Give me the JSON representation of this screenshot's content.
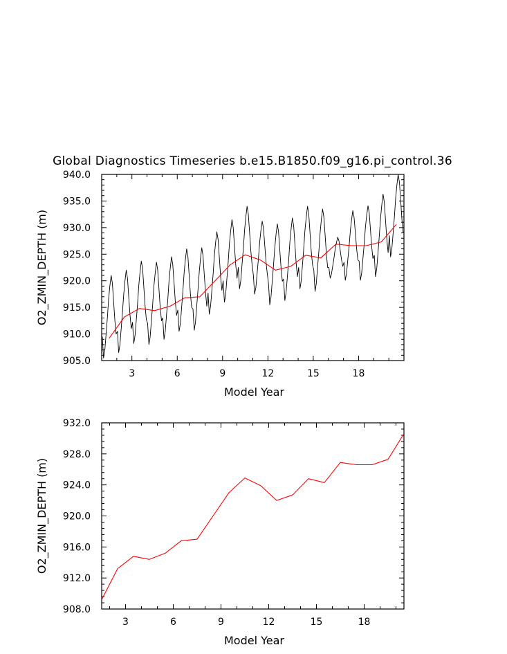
{
  "figure_title": "Global Diagnostics Timeseries b.e15.B1850.f09_g16.pi_control.36",
  "colors": {
    "monthly": "#000000",
    "annual": "#ff0000",
    "axes": "#000000",
    "background": "#ffffff"
  },
  "chart_data": [
    {
      "type": "line",
      "title": "Global Diagnostics Timeseries b.e15.B1850.f09_g16.pi_control.36",
      "xlabel": "Model Year",
      "ylabel": "O2_ZMIN_DEPTH (m)",
      "xlim": [
        1,
        21
      ],
      "ylim": [
        905.0,
        940.0
      ],
      "xticks": [
        3,
        6,
        9,
        12,
        15,
        18
      ],
      "xtick_labels": [
        "3",
        "6",
        "9",
        "12",
        "15",
        "18"
      ],
      "yticks": [
        905.0,
        910.0,
        915.0,
        920.0,
        925.0,
        930.0,
        935.0,
        940.0
      ],
      "ytick_labels": [
        "905.0",
        "910.0",
        "915.0",
        "920.0",
        "925.0",
        "930.0",
        "935.0",
        "940.0"
      ],
      "series": [
        {
          "name": "monthly",
          "color": "#000000",
          "start_year": 1.0417,
          "step_years": 0.0833,
          "annual_cycle": [
            909.5,
            905.5,
            907.0,
            910.0,
            913.0,
            916.5,
            919.0,
            921.0,
            919.5,
            916.0,
            912.5,
            910.0
          ],
          "base_offset": [
            0,
            1.0,
            2.7,
            2.5,
            3.5,
            5.0,
            5.2,
            8.2,
            10.5,
            13.0,
            12.0,
            10.0,
            10.8,
            13.0,
            12.5,
            15.0,
            14.6,
            14.6,
            15.3,
            19.0
          ],
          "peak_override": {
            "10": 931.2,
            "11": 930.7,
            "15": 928.2,
            "16": 933.2,
            "17": 934.1,
            "20": 938.1
          },
          "values": []
        },
        {
          "name": "annual mean",
          "color": "#ff0000",
          "x": [
            1.5,
            2.5,
            3.5,
            4.5,
            5.5,
            6.5,
            7.5,
            8.5,
            9.5,
            10.5,
            11.5,
            12.5,
            13.5,
            14.5,
            15.5,
            16.5,
            17.5,
            18.5,
            19.5,
            20.5
          ],
          "values": [
            909.2,
            913.2,
            914.8,
            914.4,
            915.2,
            916.8,
            917.0,
            920.0,
            923.0,
            924.9,
            923.9,
            922.0,
            922.7,
            924.8,
            924.3,
            926.9,
            926.6,
            926.6,
            927.3,
            930.6
          ]
        }
      ]
    },
    {
      "type": "line",
      "title": "",
      "xlabel": "Model Year",
      "ylabel": "O2_ZMIN_DEPTH (m)",
      "xlim": [
        1.5,
        20.5
      ],
      "ylim": [
        908.0,
        932.0
      ],
      "xticks": [
        3,
        6,
        9,
        12,
        15,
        18
      ],
      "xtick_labels": [
        "3",
        "6",
        "9",
        "12",
        "15",
        "18"
      ],
      "yticks": [
        908.0,
        912.0,
        916.0,
        920.0,
        924.0,
        928.0,
        932.0
      ],
      "ytick_labels": [
        "908.0",
        "912.0",
        "916.0",
        "920.0",
        "924.0",
        "928.0",
        "932.0"
      ],
      "series": [
        {
          "name": "annual mean",
          "color": "#ff0000",
          "x": [
            1.5,
            2.5,
            3.5,
            4.5,
            5.5,
            6.5,
            7.5,
            8.5,
            9.5,
            10.5,
            11.5,
            12.5,
            13.5,
            14.5,
            15.5,
            16.5,
            17.5,
            18.5,
            19.5,
            20.5
          ],
          "values": [
            909.2,
            913.2,
            914.8,
            914.4,
            915.2,
            916.8,
            917.0,
            920.0,
            923.0,
            924.9,
            923.9,
            922.0,
            922.7,
            924.8,
            924.3,
            926.9,
            926.6,
            926.6,
            927.3,
            930.6
          ]
        }
      ]
    }
  ]
}
